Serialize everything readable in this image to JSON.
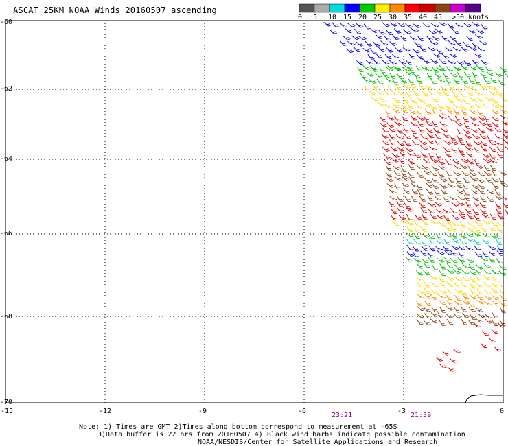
{
  "title": "ASCAT 25KM NOAA Winds 20160507 ascending",
  "colorbar": {
    "labels": [
      "0",
      "5",
      "10",
      "15",
      "20",
      "25",
      "30",
      "35",
      "40",
      "45",
      ">50 knots"
    ],
    "colors": [
      "#555555",
      "#aaaaaa",
      "#00dddd",
      "#0000ff",
      "#00cc00",
      "#ffee00",
      "#ff8800",
      "#ff0000",
      "#cc0000",
      "#8b4513",
      "#cc00cc",
      "#550088"
    ]
  },
  "axes": {
    "lat_labels": [
      "-60",
      "-62",
      "-64",
      "-66",
      "-68",
      "-70"
    ],
    "lon_labels": [
      "-15",
      "-12",
      "-9",
      "-6",
      "-3",
      "0"
    ]
  },
  "times": [
    "23:21",
    "21:39"
  ],
  "notes": [
    "Note: 1) Times are GMT 2)Times along bottom correspond to measurement at -65S",
    "3)Data buffer is 22 hrs from 20160507 4) Black wind barbs indicate possible contamination",
    "NOAA/NESDIS/Center for Satellite Applications and Research"
  ],
  "barb_color_names": {
    "blue": "#0000ee",
    "green": "#00bb00",
    "yellow": "#ffd700",
    "orange": "#ff8c00",
    "red": "#dd0000",
    "brown": "#8b4513",
    "cyan": "#00cccc",
    "black": "#000000"
  }
}
